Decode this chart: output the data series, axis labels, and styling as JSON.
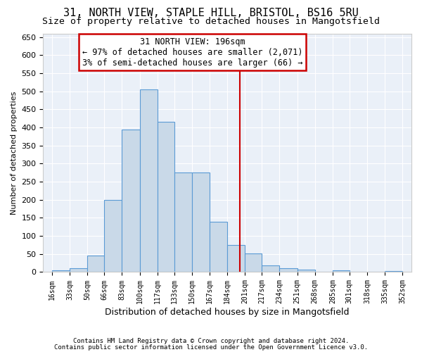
{
  "title_line1": "31, NORTH VIEW, STAPLE HILL, BRISTOL, BS16 5RU",
  "title_line2": "Size of property relative to detached houses in Mangotsfield",
  "xlabel": "Distribution of detached houses by size in Mangotsfield",
  "ylabel": "Number of detached properties",
  "footnote1": "Contains HM Land Registry data © Crown copyright and database right 2024.",
  "footnote2": "Contains public sector information licensed under the Open Government Licence v3.0.",
  "bin_labels": [
    "16sqm",
    "33sqm",
    "50sqm",
    "66sqm",
    "83sqm",
    "100sqm",
    "117sqm",
    "133sqm",
    "150sqm",
    "167sqm",
    "184sqm",
    "201sqm",
    "217sqm",
    "234sqm",
    "251sqm",
    "268sqm",
    "285sqm",
    "301sqm",
    "318sqm",
    "335sqm",
    "352sqm"
  ],
  "bar_values": [
    5,
    10,
    45,
    200,
    395,
    505,
    415,
    275,
    275,
    140,
    75,
    52,
    18,
    10,
    7,
    0,
    5,
    0,
    0,
    3
  ],
  "bin_edges": [
    16,
    33,
    50,
    66,
    83,
    100,
    117,
    133,
    150,
    167,
    184,
    201,
    217,
    234,
    251,
    268,
    285,
    301,
    318,
    335,
    352
  ],
  "bar_color": "#c9d9e8",
  "bar_edge_color": "#5b9bd5",
  "vline_x": 196,
  "vline_color": "#cc0000",
  "annotation_title": "31 NORTH VIEW: 196sqm",
  "annotation_line1": "← 97% of detached houses are smaller (2,071)",
  "annotation_line2": "3% of semi-detached houses are larger (66) →",
  "ylim": [
    0,
    660
  ],
  "yticks": [
    0,
    50,
    100,
    150,
    200,
    250,
    300,
    350,
    400,
    450,
    500,
    550,
    600,
    650
  ],
  "background_color": "#eaf0f8",
  "grid_color": "#ffffff"
}
